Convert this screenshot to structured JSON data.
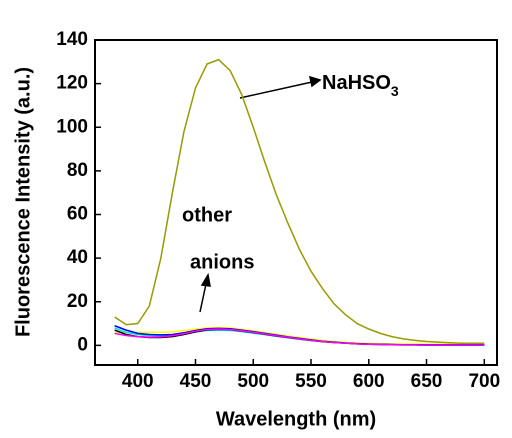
{
  "chart_data": {
    "type": "line",
    "x_label": "Wavelength (nm)",
    "y_label": "Fluorescence Intensity (a.u.)",
    "x": [
      380,
      390,
      400,
      410,
      420,
      430,
      440,
      450,
      460,
      470,
      480,
      490,
      500,
      510,
      520,
      530,
      540,
      550,
      560,
      570,
      580,
      590,
      600,
      610,
      620,
      630,
      640,
      650,
      660,
      670,
      680,
      690,
      700
    ],
    "series": [
      {
        "color": "#ffff00",
        "values": [
          6,
          6,
          6,
          6,
          6,
          6.2,
          6.8,
          7.5,
          8,
          8.2,
          8,
          7.4,
          6.7,
          5.9,
          5.1,
          4.3,
          3.6,
          2.9,
          2.3,
          1.8,
          1.4,
          1.1,
          0.9,
          0.8,
          0.7,
          0.6,
          0.6,
          0.5,
          0.5,
          0.5,
          0.5,
          0.5,
          0.5
        ]
      },
      {
        "color": "#00e0e0",
        "values": [
          8,
          6,
          5,
          4.5,
          4.4,
          4.6,
          5.3,
          6.2,
          6.8,
          7,
          6.8,
          6.3,
          5.6,
          4.9,
          4.2,
          3.5,
          2.8,
          2.2,
          1.7,
          1.3,
          1,
          0.7,
          0.5,
          0.4,
          0.3,
          0.3,
          0.2,
          0.2,
          0.2,
          0.2,
          0.2,
          0.2,
          0.2
        ]
      },
      {
        "color": "#0000ff",
        "values": [
          9,
          7,
          5.5,
          5,
          4.8,
          5,
          5.8,
          6.8,
          7.6,
          7.8,
          7.6,
          7,
          6.3,
          5.5,
          4.7,
          3.9,
          3.2,
          2.5,
          1.9,
          1.5,
          1.1,
          0.8,
          0.6,
          0.5,
          0.4,
          0.3,
          0.3,
          0.2,
          0.2,
          0.2,
          0.2,
          0.2,
          0.2
        ]
      },
      {
        "color": "#000000",
        "values": [
          7,
          5,
          4,
          3.6,
          3.6,
          4,
          5,
          6.2,
          7.1,
          7.4,
          7.2,
          6.6,
          5.9,
          5.1,
          4.3,
          3.6,
          2.9,
          2.3,
          1.7,
          1.3,
          1,
          0.7,
          0.5,
          0.4,
          0.3,
          0.2,
          0.2,
          0.1,
          0.1,
          0.1,
          0.1,
          0.1,
          0.1
        ]
      },
      {
        "color": "#ff00ff",
        "values": [
          5.5,
          4.5,
          4,
          3.8,
          3.9,
          4.4,
          5.4,
          6.5,
          7.3,
          7.5,
          7.3,
          6.7,
          6,
          5.2,
          4.4,
          3.7,
          3,
          2.3,
          1.8,
          1.3,
          1,
          0.7,
          0.5,
          0.4,
          0.3,
          0.2,
          0.2,
          0.1,
          0.1,
          0.1,
          0.1,
          0.1,
          0.1
        ]
      },
      {
        "color": "#999900",
        "values": [
          13,
          9.5,
          10,
          18,
          40,
          70,
          98,
          118,
          129,
          131,
          126,
          115,
          100,
          84,
          69,
          56,
          44,
          34,
          26,
          19,
          14,
          10,
          7.5,
          5.5,
          4,
          3,
          2.3,
          1.8,
          1.5,
          1.2,
          1,
          1,
          1
        ]
      }
    ],
    "annotations": [
      {
        "text": "NaHSO"
      },
      {
        "text": "3"
      },
      {
        "text": "other"
      },
      {
        "text": "anions"
      }
    ],
    "xlim": [
      363,
      711
    ],
    "xticks": [
      400,
      450,
      500,
      550,
      600,
      650,
      700
    ],
    "ylim": [
      -9,
      140
    ],
    "yticks": [
      0,
      20,
      40,
      60,
      80,
      100,
      120,
      140
    ]
  }
}
